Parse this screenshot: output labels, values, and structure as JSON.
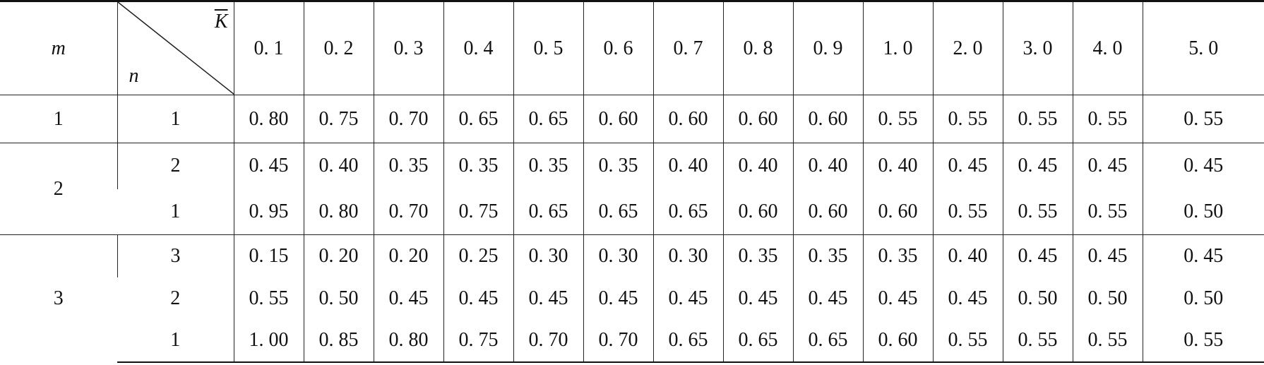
{
  "header": {
    "m": "m",
    "n": "n",
    "k": "K",
    "columns": [
      "0. 1",
      "0. 2",
      "0. 3",
      "0. 4",
      "0. 5",
      "0. 6",
      "0. 7",
      "0. 8",
      "0. 9",
      "1. 0",
      "2. 0",
      "3. 0",
      "4. 0",
      "5. 0"
    ]
  },
  "groups": [
    {
      "m": "1",
      "rows": [
        {
          "n": "1",
          "values": [
            "0. 80",
            "0. 75",
            "0. 70",
            "0. 65",
            "0. 65",
            "0. 60",
            "0. 60",
            "0. 60",
            "0. 60",
            "0. 55",
            "0. 55",
            "0. 55",
            "0. 55",
            "0. 55"
          ]
        }
      ]
    },
    {
      "m": "2",
      "rows": [
        {
          "n": "2",
          "values": [
            "0. 45",
            "0. 40",
            "0. 35",
            "0. 35",
            "0. 35",
            "0. 35",
            "0. 40",
            "0. 40",
            "0. 40",
            "0. 40",
            "0. 45",
            "0. 45",
            "0. 45",
            "0. 45"
          ]
        },
        {
          "n": "1",
          "values": [
            "0. 95",
            "0. 80",
            "0. 70",
            "0. 75",
            "0. 65",
            "0. 65",
            "0. 65",
            "0. 60",
            "0. 60",
            "0. 60",
            "0. 55",
            "0. 55",
            "0. 55",
            "0. 50"
          ]
        }
      ]
    },
    {
      "m": "3",
      "rows": [
        {
          "n": "3",
          "values": [
            "0. 15",
            "0. 20",
            "0. 20",
            "0. 25",
            "0. 30",
            "0. 30",
            "0. 30",
            "0. 35",
            "0. 35",
            "0. 35",
            "0. 40",
            "0. 45",
            "0. 45",
            "0. 45"
          ]
        },
        {
          "n": "2",
          "values": [
            "0. 55",
            "0. 50",
            "0. 45",
            "0. 45",
            "0. 45",
            "0. 45",
            "0. 45",
            "0. 45",
            "0. 45",
            "0. 45",
            "0. 45",
            "0. 50",
            "0. 50",
            "0. 50"
          ]
        },
        {
          "n": "1",
          "values": [
            "1. 00",
            "0. 85",
            "0. 80",
            "0. 75",
            "0. 70",
            "0. 70",
            "0. 65",
            "0. 65",
            "0. 65",
            "0. 60",
            "0. 55",
            "0. 55",
            "0. 55",
            "0. 55"
          ]
        }
      ]
    }
  ]
}
